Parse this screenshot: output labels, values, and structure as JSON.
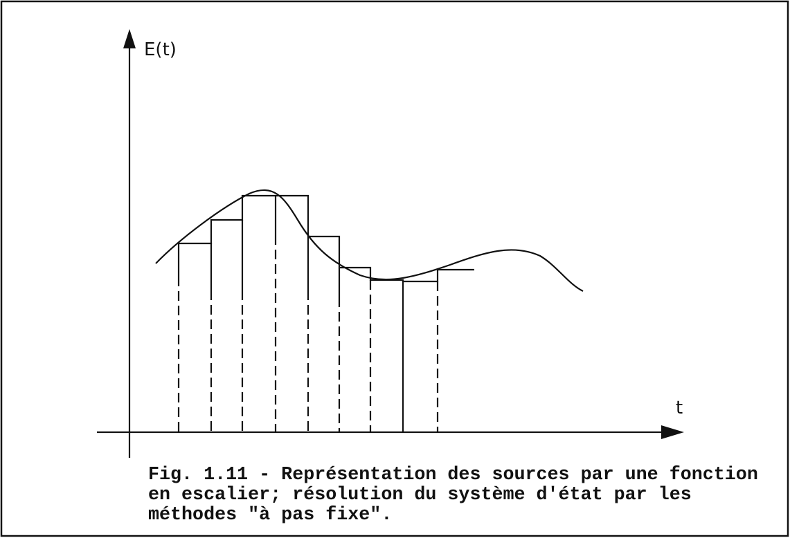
{
  "figure": {
    "y_axis_label": "E(t)",
    "x_axis_label": "t",
    "caption": [
      "Fig. 1.11 - Représentation des sources par une fonction",
      "en escalier; résolution du système d'état par les",
      "méthodes \"à pas fixe\"."
    ]
  }
}
